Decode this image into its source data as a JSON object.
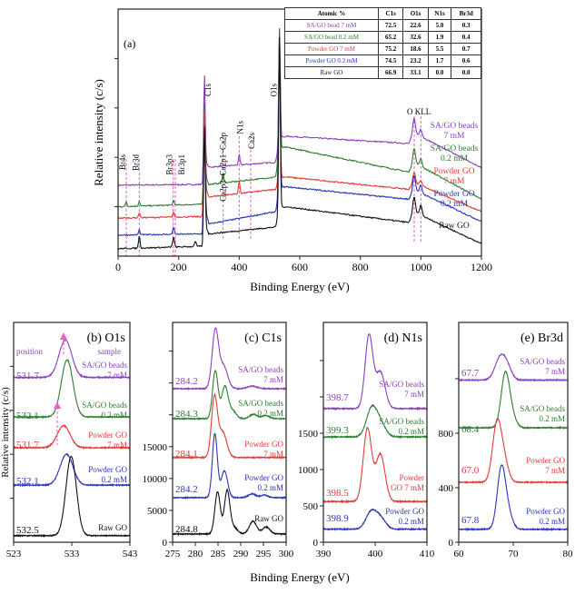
{
  "colors": {
    "purple": "#8a3fc0",
    "green": "#2e7d32",
    "red": "#e53935",
    "blue": "#2a35b8",
    "black": "#111111",
    "marker": "#e860c8"
  },
  "table": {
    "headers": [
      "Atomic %",
      "C1s",
      "O1s",
      "N1s",
      "Br3d"
    ],
    "rows": [
      {
        "sample": "SA/GO bead  7 mM",
        "color": "#8a3fc0",
        "values": [
          "72.5",
          "22.6",
          "5.0",
          "0.3"
        ]
      },
      {
        "sample": "SA/GO bead  0.2 mM",
        "color": "#2e7d32",
        "values": [
          "65.2",
          "32.6",
          "1.9",
          "0.4"
        ]
      },
      {
        "sample": "Powder GO 7 mM",
        "color": "#e53935",
        "values": [
          "75.2",
          "18.6",
          "5.5",
          "0.7"
        ]
      },
      {
        "sample": "Powder GO 0.2 mM",
        "color": "#2a35b8",
        "values": [
          "74.5",
          "23.2",
          "1.7",
          "0.6"
        ]
      },
      {
        "sample": "Raw GO",
        "color": "#111111",
        "values": [
          "66.9",
          "33.1",
          "0.0",
          "0.0"
        ]
      }
    ]
  },
  "shared_xlabel": "Binding Energy (eV)",
  "chart_data": [
    {
      "id": "a",
      "type": "line",
      "title": "(a)",
      "xlabel": "Binding Energy (eV)",
      "ylabel": "Relative intensity (c/s)",
      "xlim": [
        0,
        1200
      ],
      "ylim": [
        0,
        100
      ],
      "y_tick_labels_shown": false,
      "xticks": [
        "0",
        "200",
        "400",
        "600",
        "800",
        "1000",
        "1200"
      ],
      "yticks_unlabeled": [
        20,
        40,
        60,
        80
      ],
      "peak_labels": [
        {
          "label": "Br4s",
          "x": 27
        },
        {
          "label": "Br3d",
          "x": 70
        },
        {
          "label": "Br3p3",
          "x": 182
        },
        {
          "label": "Br3p1",
          "x": 189
        },
        {
          "label": "C1s",
          "x": 285
        },
        {
          "label": "Ca2p3~Ca2p1~Ca2p",
          "x": 347
        },
        {
          "label": "N1s",
          "x": 400
        },
        {
          "label": "Ca2s",
          "x": 438
        },
        {
          "label": "O1s",
          "x": 533
        },
        {
          "label": "O KLL",
          "x": 978
        }
      ],
      "marker_lines": [
        27,
        70,
        182,
        189,
        347,
        400,
        438,
        978,
        1000
      ],
      "series": [
        {
          "name": "SA/GO beads 7 mM",
          "label_lines": [
            "SA/GO beads",
            "7 mM"
          ],
          "color": "#8a3fc0",
          "background": [
            [
              0,
              28.7
            ],
            [
              280,
              29
            ],
            [
              290,
              38
            ],
            [
              300,
              36
            ],
            [
              520,
              38
            ],
            [
              535,
              48
            ],
            [
              560,
              48.5
            ],
            [
              960,
              45.6
            ],
            [
              975,
              50
            ],
            [
              1200,
              35.7
            ]
          ],
          "peaks": [
            [
              285,
              40,
              2.5
            ],
            [
              400,
              4,
              2.5
            ],
            [
              533,
              46,
              2.5
            ],
            [
              978,
              6,
              4
            ],
            [
              1000,
              3,
              4
            ]
          ]
        },
        {
          "name": "SA/GO beads 0.2 mM",
          "label_lines": [
            "SA/GO beads",
            "0.2 mM"
          ],
          "color": "#2e7d32",
          "background": [
            [
              0,
              20
            ],
            [
              280,
              21
            ],
            [
              290,
              32
            ],
            [
              300,
              29
            ],
            [
              520,
              32
            ],
            [
              535,
              44
            ],
            [
              560,
              44
            ],
            [
              960,
              34
            ],
            [
              975,
              38
            ],
            [
              1200,
              23
            ]
          ],
          "peaks": [
            [
              27,
              2,
              2.5
            ],
            [
              70,
              2,
              2.5
            ],
            [
              183,
              2,
              2.5
            ],
            [
              285,
              36,
              2.5
            ],
            [
              347,
              4,
              2.5
            ],
            [
              533,
              50,
              2.5
            ],
            [
              978,
              6,
              4
            ],
            [
              1000,
              3,
              4
            ]
          ]
        },
        {
          "name": "Powder GO 7 mM",
          "label_lines": [
            "Powder GO",
            "7 mM"
          ],
          "color": "#e53935",
          "background": [
            [
              0,
              15.4
            ],
            [
              280,
              16
            ],
            [
              290,
              27
            ],
            [
              300,
              24
            ],
            [
              520,
              27
            ],
            [
              535,
              32
            ],
            [
              560,
              32
            ],
            [
              960,
              27
            ],
            [
              975,
              30
            ],
            [
              1200,
              18
            ]
          ],
          "peaks": [
            [
              70,
              2,
              2.5
            ],
            [
              183,
              2,
              2.5
            ],
            [
              285,
              38,
              2.5
            ],
            [
              400,
              5,
              2.5
            ],
            [
              533,
              58,
              2.5
            ],
            [
              978,
              4,
              4
            ],
            [
              1000,
              2,
              4
            ]
          ]
        },
        {
          "name": "Powder GO 0.2 mM",
          "label_lines": [
            "Powder GO",
            "0.2 mM"
          ],
          "color": "#2a35b8",
          "background": [
            [
              0,
              8.5
            ],
            [
              280,
              9
            ],
            [
              290,
              18
            ],
            [
              300,
              13
            ],
            [
              520,
              18
            ],
            [
              535,
              28
            ],
            [
              560,
              28
            ],
            [
              960,
              23
            ],
            [
              975,
              27
            ],
            [
              1200,
              14
            ]
          ],
          "peaks": [
            [
              70,
              2,
              2.5
            ],
            [
              183,
              3,
              2.5
            ],
            [
              285,
              40,
              2.5
            ],
            [
              533,
              62,
              2.5
            ],
            [
              978,
              6,
              4
            ],
            [
              1000,
              3,
              4
            ]
          ]
        },
        {
          "name": "Raw GO",
          "label_lines": [
            "Raw GO"
          ],
          "color": "#111111",
          "background": [
            [
              0,
              3
            ],
            [
              280,
              4
            ],
            [
              290,
              11.8
            ],
            [
              300,
              9
            ],
            [
              520,
              11.8
            ],
            [
              535,
              20
            ],
            [
              560,
              19.9
            ],
            [
              960,
              13.6
            ],
            [
              975,
              18
            ],
            [
              1200,
              5
            ]
          ],
          "peaks": [
            [
              70,
              5,
              2.5
            ],
            [
              183,
              4,
              3
            ],
            [
              255,
              2,
              3
            ],
            [
              285,
              45,
              2.5
            ],
            [
              533,
              70,
              2.5
            ],
            [
              978,
              6,
              4
            ],
            [
              1000,
              4,
              4
            ]
          ]
        }
      ]
    },
    {
      "id": "b",
      "type": "line",
      "title": "(b) O1s",
      "ylabel": "Relative intensity (c/s)",
      "xlim": [
        523,
        543
      ],
      "ylim": [
        0,
        100
      ],
      "y_tick_labels_shown": false,
      "xticks": [
        "523",
        "533",
        "543"
      ],
      "yticks_unlabeled": [
        20,
        40,
        60,
        80
      ],
      "column_headers": {
        "left": "position",
        "right": "sample"
      },
      "series": [
        {
          "name": "SA/GO beads 7 mM",
          "label_lines": [
            "SA/GO beads",
            "7 mM"
          ],
          "position": "531.7",
          "color": "#8a3fc0",
          "baseline": 75,
          "peaks": [
            [
              531.9,
              17,
              1.1
            ]
          ]
        },
        {
          "name": "SA/GO beads 0.2 mM",
          "label_lines": [
            "SA/GO beads",
            "0.2 mM"
          ],
          "position": "532.1",
          "color": "#2e7d32",
          "baseline": 57,
          "peaks": [
            [
              532.2,
              26,
              1.0
            ]
          ]
        },
        {
          "name": "Powder GO 7 mM",
          "label_lines": [
            "Powder GO",
            "7 mM"
          ],
          "position": "531.7",
          "color": "#e53935",
          "baseline": 43,
          "peaks": [
            [
              531.6,
              10,
              1.1
            ]
          ]
        },
        {
          "name": "Powder GO 0.2 mM",
          "label_lines": [
            "Powder GO",
            "0.2 mM"
          ],
          "position": "532.1",
          "color": "#2a35b8",
          "baseline": 26,
          "peaks": [
            [
              532.1,
              14,
              1.1
            ]
          ]
        },
        {
          "name": "Raw GO",
          "label_lines": [
            "Raw GO"
          ],
          "position": "532.5",
          "color": "#111111",
          "baseline": 3,
          "peaks": [
            [
              532.9,
              36,
              0.9
            ]
          ]
        }
      ]
    },
    {
      "id": "c",
      "type": "line",
      "title": "(c) C1s",
      "xlim": [
        275,
        300
      ],
      "ylim": [
        0,
        34500
      ],
      "xticks": [
        "275",
        "280",
        "285",
        "290",
        "295",
        "300"
      ],
      "yticks": [
        "0",
        "5000",
        "10000",
        "15000"
      ],
      "yticks_unlabeled": [
        20000,
        25000,
        30000
      ],
      "series": [
        {
          "name": "SA/GO beads 7 mM",
          "label_lines": [
            "SA/GO beads",
            "7 mM"
          ],
          "position": "284.2",
          "color": "#8a3fc0",
          "baseline": 24100,
          "peaks": [
            [
              284.4,
              9000,
              0.7
            ],
            [
              286.2,
              3500,
              0.9
            ],
            [
              292.5,
              400,
              1
            ]
          ]
        },
        {
          "name": "SA/GO beads 0.2 mM",
          "label_lines": [
            "SA/GO beads",
            "0.2 mM"
          ],
          "position": "284.3",
          "color": "#2e7d32",
          "baseline": 19400,
          "peaks": [
            [
              284.4,
              7500,
              0.6
            ],
            [
              286.5,
              5000,
              0.7
            ],
            [
              288.2,
              1200,
              0.8
            ],
            [
              292.8,
              700,
              0.8
            ],
            [
              295.5,
              500,
              0.8
            ]
          ]
        },
        {
          "name": "Powder GO 7 mM",
          "label_lines": [
            "Powder GO",
            "7 mM"
          ],
          "position": "284.1",
          "color": "#e53935",
          "baseline": 13300,
          "peaks": [
            [
              284.2,
              9300,
              0.65
            ],
            [
              286.0,
              4000,
              0.9
            ]
          ]
        },
        {
          "name": "Powder GO 0.2 mM",
          "label_lines": [
            "Powder GO",
            "0.2 mM"
          ],
          "position": "284.2",
          "color": "#2a35b8",
          "baseline": 7000,
          "peaks": [
            [
              284.3,
              10000,
              0.55
            ],
            [
              286.4,
              4200,
              0.7
            ],
            [
              292.5,
              600,
              0.8
            ],
            [
              295.2,
              400,
              0.8
            ]
          ]
        },
        {
          "name": "Raw GO",
          "label_lines": [
            "Raw GO"
          ],
          "position": "284.8",
          "color": "#111111",
          "baseline": 1300,
          "peaks": [
            [
              284.9,
              6600,
              0.6
            ],
            [
              287.0,
              6700,
              0.6
            ],
            [
              288.5,
              1000,
              0.8
            ],
            [
              292.7,
              2000,
              0.8
            ],
            [
              295.6,
              1100,
              0.8
            ]
          ]
        }
      ]
    },
    {
      "id": "d",
      "type": "line",
      "title": "(d) N1s",
      "xlim": [
        390,
        410
      ],
      "ylim": [
        0,
        3025
      ],
      "xticks": [
        "390",
        "400",
        "410"
      ],
      "yticks": [
        "0",
        "500",
        "1000",
        "1500"
      ],
      "yticks_unlabeled": [
        2000,
        2500
      ],
      "series": [
        {
          "name": "SA/GO beads 7 mM",
          "label_lines": [
            "SA/GO beads",
            "7 mM"
          ],
          "position": "398.7",
          "color": "#8a3fc0",
          "baseline": 1840,
          "peaks": [
            [
              398.8,
              1000,
              0.75
            ],
            [
              401.0,
              500,
              0.9
            ]
          ]
        },
        {
          "name": "SA/GO beads 0.2 mM",
          "label_lines": [
            "SA/GO beads",
            "0.2 mM"
          ],
          "position": "399.3",
          "color": "#2e7d32",
          "baseline": 1450,
          "peaks": [
            [
              399.3,
              380,
              1.0
            ],
            [
              401.0,
              180,
              1.0
            ]
          ]
        },
        {
          "name": "Powder GO 7 mM",
          "label_lines": [
            "Powder",
            "GO 7 mM"
          ],
          "position": "398.5",
          "color": "#e53935",
          "baseline": 560,
          "peaks": [
            [
              398.5,
              1000,
              0.8
            ],
            [
              401.0,
              650,
              0.9
            ]
          ]
        },
        {
          "name": "Powder GO 0.2 mM",
          "label_lines": [
            "Powder GO",
            "0.2 mM"
          ],
          "position": "398.9",
          "color": "#2a35b8",
          "baseline": 180,
          "peaks": [
            [
              399.2,
              230,
              1.0
            ],
            [
              401.0,
              150,
              1.0
            ]
          ]
        }
      ]
    },
    {
      "id": "e",
      "type": "line",
      "title": "(e) Br3d",
      "xlim": [
        60,
        80
      ],
      "ylim": [
        0,
        1613
      ],
      "xticks": [
        "60",
        "70",
        "80"
      ],
      "yticks": [
        "0",
        "400",
        "800"
      ],
      "yticks_unlabeled": [
        1200
      ],
      "series": [
        {
          "name": "SA/GO beads 7 mM",
          "label_lines": [
            "SA/GO beads",
            "7 mM"
          ],
          "position": "67.7",
          "color": "#8a3fc0",
          "baseline": 1190,
          "peaks": [
            [
              67.7,
              170,
              1.0
            ],
            [
              69.0,
              60,
              0.8
            ]
          ]
        },
        {
          "name": "SA/GO beads 0.2 mM",
          "label_lines": [
            "SA/GO beads",
            "0.2 mM"
          ],
          "position": "68.4",
          "color": "#2e7d32",
          "baseline": 840,
          "peaks": [
            [
              68.5,
              370,
              0.75
            ],
            [
              69.6,
              100,
              0.8
            ]
          ]
        },
        {
          "name": "Powder GO 7 mM",
          "label_lines": [
            "Powder GO",
            "7 mM"
          ],
          "position": "67.0",
          "color": "#e53935",
          "baseline": 440,
          "peaks": [
            [
              67.0,
              420,
              0.8
            ],
            [
              68.3,
              150,
              0.8
            ]
          ]
        },
        {
          "name": "Powder GO 0.2 mM",
          "label_lines": [
            "Powder GO",
            "0.2 mM"
          ],
          "position": "67.8",
          "color": "#2a35b8",
          "baseline": 95,
          "peaks": [
            [
              67.8,
              430,
              0.75
            ],
            [
              69.0,
              120,
              0.8
            ]
          ]
        }
      ]
    }
  ]
}
